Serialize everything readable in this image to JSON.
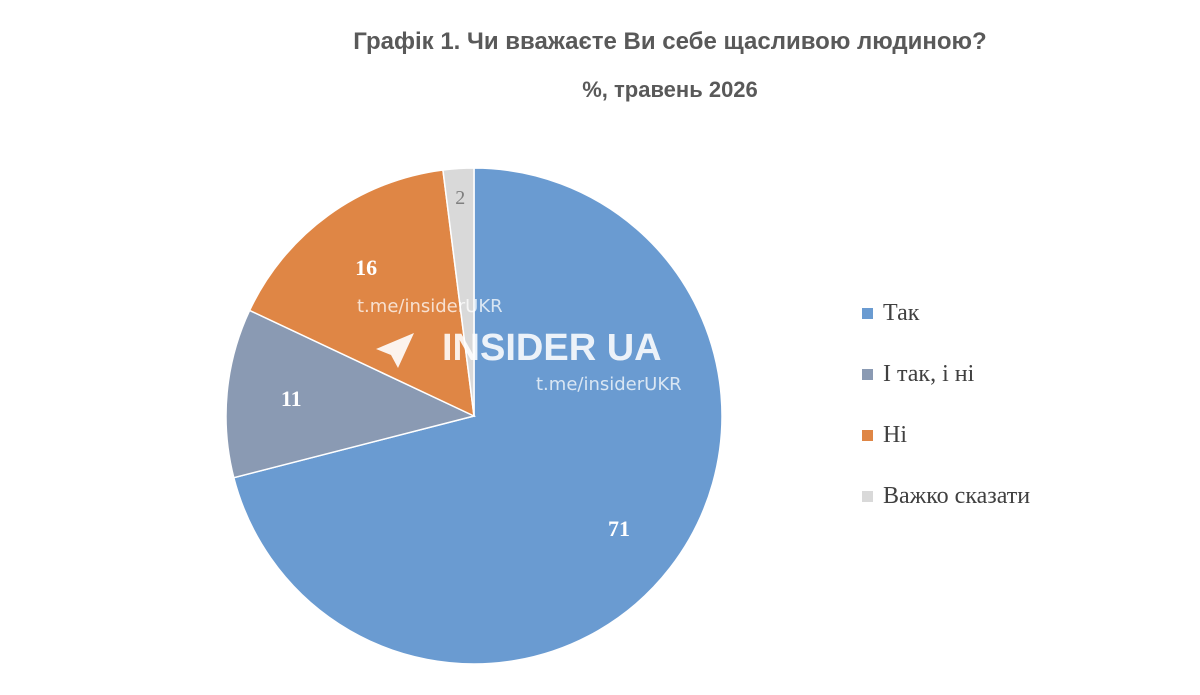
{
  "chart_data": {
    "type": "pie",
    "title": "Графік 1. Чи вважаєте Ви себе щасливою людиною?",
    "subtitle": "%, травень 2026",
    "categories": [
      "Так",
      "І так, і ні",
      "Ні",
      "Важко сказати"
    ],
    "values": [
      71,
      11,
      16,
      2
    ],
    "colors": [
      "#6a9bd1",
      "#8a9ab3",
      "#df8645",
      "#d9d9d9"
    ],
    "legend_position": "right"
  },
  "watermark": {
    "brand": "INSIDER UA",
    "link_top": "t.me/insiderUKR",
    "link_bottom": "t.me/insiderUKR",
    "icon": "telegram-plane-icon"
  }
}
